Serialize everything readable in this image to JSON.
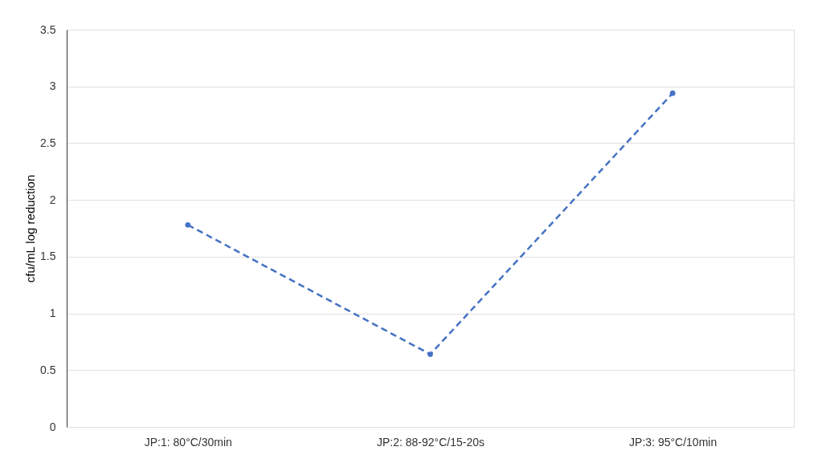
{
  "chart_data": {
    "type": "line",
    "ylabel": "cfu/mL log reduction",
    "categories": [
      "JP:1: 80°C/30min",
      "JP:2: 88-92°C/15-20s",
      "JP:3: 95°C/10min"
    ],
    "series": [
      {
        "color": "#4472c4",
        "values": [
          1.78,
          0.64,
          2.94
        ]
      }
    ],
    "ylim": [
      0,
      3.5
    ],
    "yticks": [
      0,
      0.5,
      1,
      1.5,
      2,
      2.5,
      3,
      3.5
    ],
    "grid": "y",
    "marker": "circle",
    "line_style": "dashed"
  }
}
